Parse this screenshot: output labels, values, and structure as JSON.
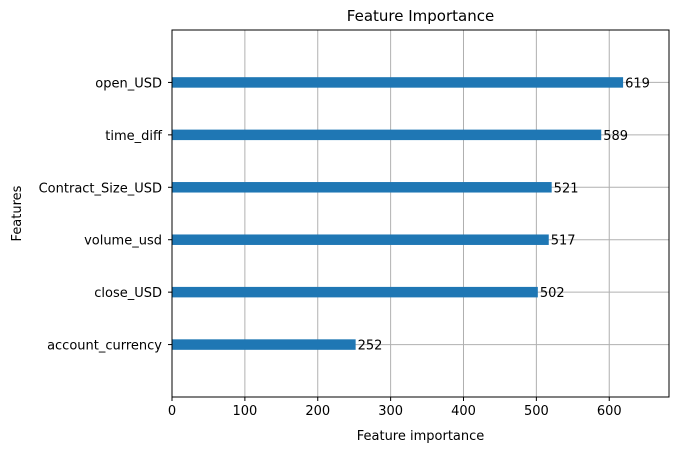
{
  "chart_data": {
    "type": "bar",
    "orientation": "horizontal",
    "title": "Feature Importance",
    "xlabel": "Feature importance",
    "ylabel": "Features",
    "categories": [
      "account_currency",
      "close_USD",
      "volume_usd",
      "Contract_Size_USD",
      "time_diff",
      "open_USD"
    ],
    "values": [
      252,
      502,
      517,
      521,
      589,
      619
    ],
    "xlim": [
      0,
      682
    ],
    "xticks": [
      0,
      100,
      200,
      300,
      400,
      500,
      600
    ],
    "grid": true,
    "bar_color": "#1f77b4",
    "grid_color": "#b0b0b0",
    "value_labels": true
  }
}
